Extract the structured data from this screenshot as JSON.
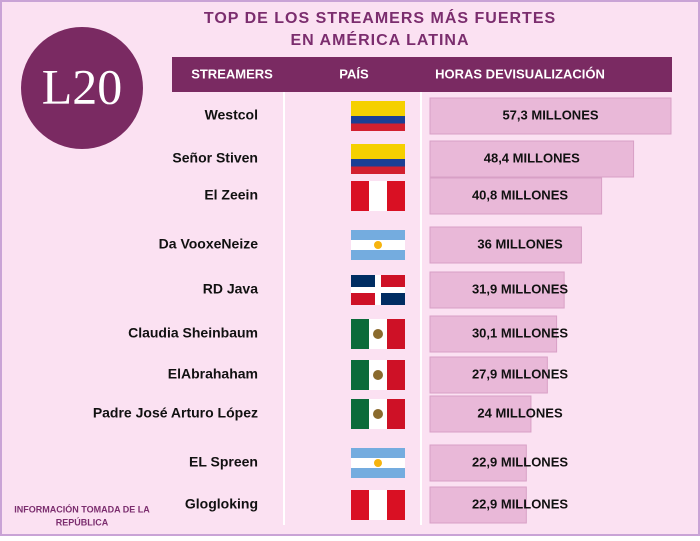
{
  "logo": "L20",
  "note": "INFORMACIÓN TOMADA DE LA REPÚBLICA",
  "chart_data": {
    "type": "bar",
    "orientation": "horizontal",
    "title": "TOP DE LOS STREAMERS MÁS FUERTES EN AMÉRICA LATINA",
    "column_headers": [
      "STREAMERS",
      "PAÍS",
      "HORAS DEVISUALIZACIÓN"
    ],
    "categories": [
      "Westcol",
      "Señor Stiven",
      "El Zeein",
      "Da VooxeNeize",
      "RD Java",
      "Claudia Sheinbaum",
      "ElAbrahaham",
      "Padre José Arturo López",
      "EL Spreen",
      "Glogloking"
    ],
    "values": [
      57.3,
      48.4,
      40.8,
      36,
      31.9,
      30.1,
      27.9,
      24,
      22.9,
      22.9
    ],
    "value_labels": [
      "57,3 MILLONES",
      "48,4 MILLONES",
      "40,8 MILLONES",
      "36 MILLONES",
      "31,9 MILLONES",
      "30,1 MILLONES",
      "27,9 MILLONES",
      "24 MILLONES",
      "22,9 MILLONES",
      "22,9 MILLONES"
    ],
    "color": "#e9b8d8"
  }
}
